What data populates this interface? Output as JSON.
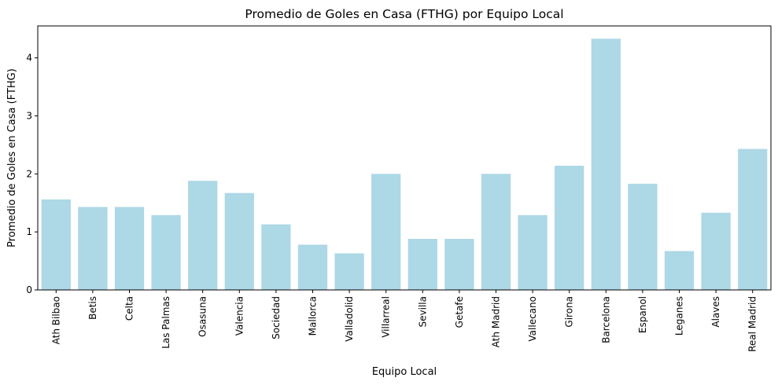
{
  "chart_data": {
    "type": "bar",
    "title": "Promedio de Goles en Casa (FTHG) por Equipo Local",
    "xlabel": "Equipo Local",
    "ylabel": "Promedio de Goles en Casa (FTHG)",
    "categories": [
      "Ath Bilbao",
      "Betis",
      "Celta",
      "Las Palmas",
      "Osasuna",
      "Valencia",
      "Sociedad",
      "Mallorca",
      "Valladolid",
      "Villarreal",
      "Sevilla",
      "Getafe",
      "Ath Madrid",
      "Vallecano",
      "Girona",
      "Barcelona",
      "Espanol",
      "Leganes",
      "Alaves",
      "Real Madrid"
    ],
    "values": [
      1.56,
      1.43,
      1.43,
      1.29,
      1.88,
      1.67,
      1.13,
      0.78,
      0.63,
      2.0,
      0.88,
      0.88,
      2.0,
      1.29,
      2.14,
      4.33,
      1.83,
      0.67,
      1.33,
      2.43
    ],
    "ylim": [
      0,
      4.55
    ],
    "yticks": [
      "0",
      "1",
      "2",
      "3",
      "4"
    ],
    "bar_color": "#add8e6",
    "grid": false
  }
}
